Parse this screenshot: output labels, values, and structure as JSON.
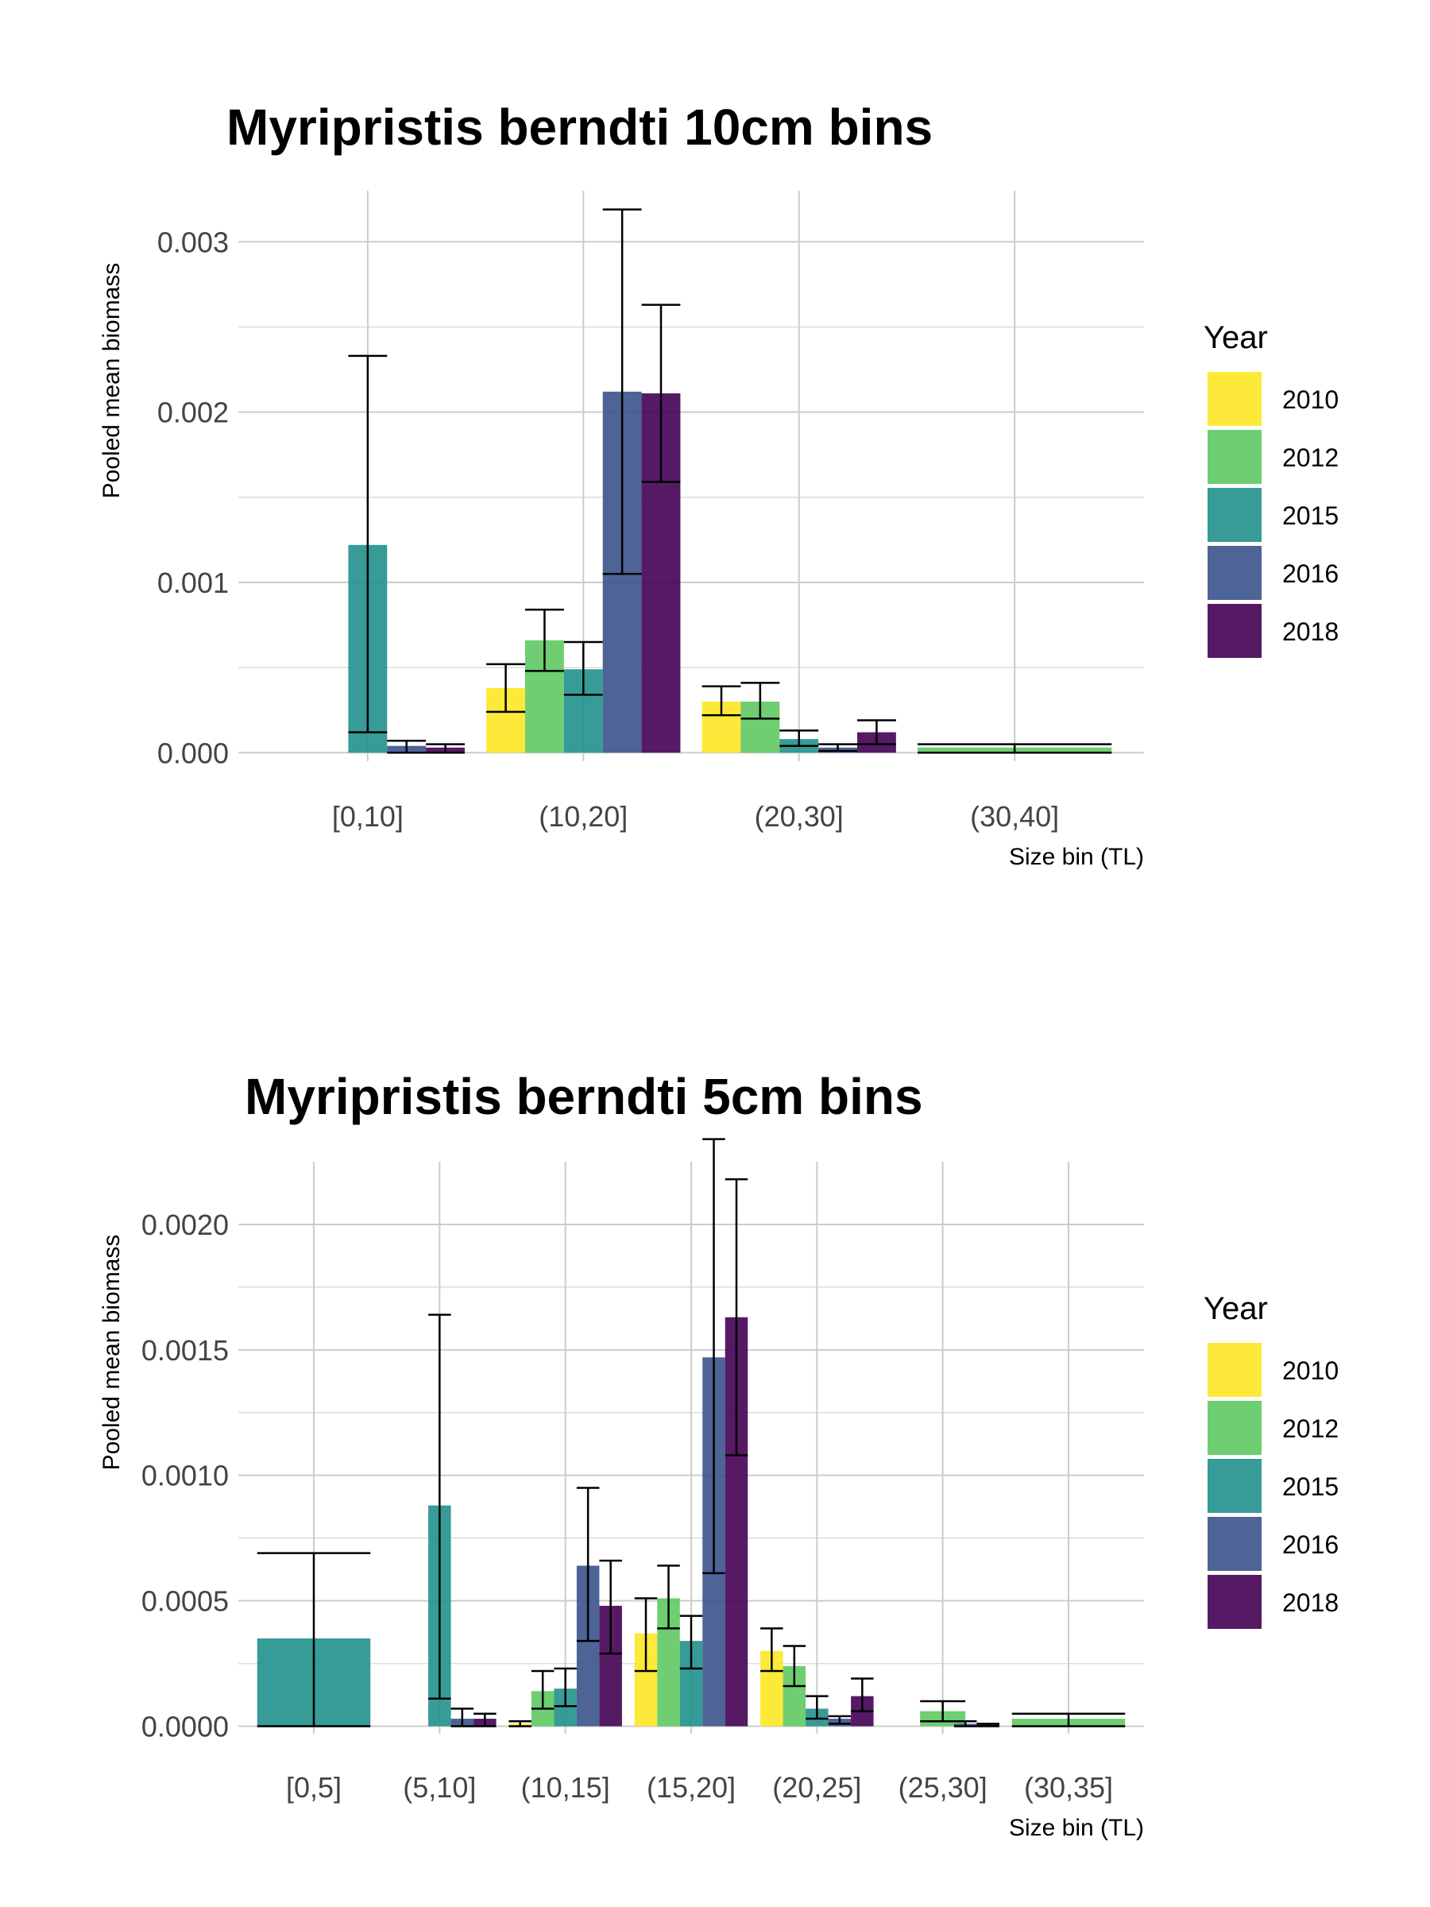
{
  "colors": {
    "2010": "#FDE725",
    "2012": "#5EC962",
    "2015": "#21908C",
    "2016": "#3B528B",
    "2018": "#440154"
  },
  "chart_data": [
    {
      "type": "bar",
      "title": "Myripristis berndti 10cm bins",
      "xlabel": "Size bin (TL)",
      "ylabel": "Pooled mean biomass",
      "categories": [
        "[0,10]",
        "(10,20]",
        "(20,30]",
        "(30,40]"
      ],
      "ylim": [
        -5e-05,
        0.0033
      ],
      "yticks": [
        0,
        0.001,
        0.002,
        0.003
      ],
      "ytick_labels": [
        "0.000",
        "0.001",
        "0.002",
        "0.003"
      ],
      "grid": true,
      "legend": {
        "title": "Year",
        "position": "right",
        "entries": [
          "2010",
          "2012",
          "2015",
          "2016",
          "2018"
        ]
      },
      "bars": [
        {
          "category": 0,
          "year": "2015",
          "value": 0.00122,
          "lo": 0.00012,
          "hi": 0.00233
        },
        {
          "category": 0,
          "year": "2016",
          "value": 4e-05,
          "lo": 0.0,
          "hi": 7e-05
        },
        {
          "category": 0,
          "year": "2018",
          "value": 3e-05,
          "lo": 0.0,
          "hi": 5e-05
        },
        {
          "category": 1,
          "year": "2010",
          "value": 0.00038,
          "lo": 0.00024,
          "hi": 0.00052
        },
        {
          "category": 1,
          "year": "2012",
          "value": 0.00066,
          "lo": 0.00048,
          "hi": 0.00084
        },
        {
          "category": 1,
          "year": "2015",
          "value": 0.00049,
          "lo": 0.00034,
          "hi": 0.00065
        },
        {
          "category": 1,
          "year": "2016",
          "value": 0.00212,
          "lo": 0.00105,
          "hi": 0.00319
        },
        {
          "category": 1,
          "year": "2018",
          "value": 0.00211,
          "lo": 0.00159,
          "hi": 0.00263
        },
        {
          "category": 2,
          "year": "2010",
          "value": 0.0003,
          "lo": 0.00022,
          "hi": 0.00039
        },
        {
          "category": 2,
          "year": "2012",
          "value": 0.0003,
          "lo": 0.0002,
          "hi": 0.00041
        },
        {
          "category": 2,
          "year": "2015",
          "value": 8e-05,
          "lo": 4e-05,
          "hi": 0.00013
        },
        {
          "category": 2,
          "year": "2016",
          "value": 3e-05,
          "lo": 1e-05,
          "hi": 5e-05
        },
        {
          "category": 2,
          "year": "2018",
          "value": 0.00012,
          "lo": 5e-05,
          "hi": 0.00019
        },
        {
          "category": 3,
          "year": "2012",
          "value": 3e-05,
          "lo": 0.0,
          "hi": 5e-05,
          "span": 5
        }
      ]
    },
    {
      "type": "bar",
      "title": "Myripristis berndti 5cm bins",
      "xlabel": "Size bin (TL)",
      "ylabel": "Pooled mean biomass",
      "categories": [
        "[0,5]",
        "(5,10]",
        "(10,15]",
        "(15,20]",
        "(20,25]",
        "(25,30]",
        "(30,35]"
      ],
      "ylim": [
        -3e-05,
        0.00225
      ],
      "yticks": [
        0,
        0.0005,
        0.001,
        0.0015,
        0.002
      ],
      "ytick_labels": [
        "0.0000",
        "0.0005",
        "0.0010",
        "0.0015",
        "0.0020"
      ],
      "grid": true,
      "legend": {
        "title": "Year",
        "position": "right",
        "entries": [
          "2010",
          "2012",
          "2015",
          "2016",
          "2018"
        ]
      },
      "bars": [
        {
          "category": 0,
          "year": "2015",
          "value": 0.00035,
          "lo": 0.0,
          "hi": 0.00069,
          "span": 5
        },
        {
          "category": 1,
          "year": "2015",
          "value": 0.00088,
          "lo": 0.00011,
          "hi": 0.00164
        },
        {
          "category": 1,
          "year": "2016",
          "value": 3e-05,
          "lo": 0.0,
          "hi": 7e-05
        },
        {
          "category": 1,
          "year": "2018",
          "value": 3e-05,
          "lo": 0.0,
          "hi": 5e-05
        },
        {
          "category": 2,
          "year": "2010",
          "value": 1e-05,
          "lo": 0.0,
          "hi": 2e-05
        },
        {
          "category": 2,
          "year": "2012",
          "value": 0.00014,
          "lo": 7e-05,
          "hi": 0.00022
        },
        {
          "category": 2,
          "year": "2015",
          "value": 0.00015,
          "lo": 8e-05,
          "hi": 0.00023
        },
        {
          "category": 2,
          "year": "2016",
          "value": 0.00064,
          "lo": 0.00034,
          "hi": 0.00095
        },
        {
          "category": 2,
          "year": "2018",
          "value": 0.00048,
          "lo": 0.00029,
          "hi": 0.00066
        },
        {
          "category": 3,
          "year": "2010",
          "value": 0.00037,
          "lo": 0.00022,
          "hi": 0.00051
        },
        {
          "category": 3,
          "year": "2012",
          "value": 0.00051,
          "lo": 0.00039,
          "hi": 0.00064
        },
        {
          "category": 3,
          "year": "2015",
          "value": 0.00034,
          "lo": 0.00023,
          "hi": 0.00044
        },
        {
          "category": 3,
          "year": "2016",
          "value": 0.00147,
          "lo": 0.00061,
          "hi": 0.00234
        },
        {
          "category": 3,
          "year": "2018",
          "value": 0.00163,
          "lo": 0.00108,
          "hi": 0.00218
        },
        {
          "category": 4,
          "year": "2010",
          "value": 0.0003,
          "lo": 0.00022,
          "hi": 0.00039
        },
        {
          "category": 4,
          "year": "2012",
          "value": 0.00024,
          "lo": 0.00016,
          "hi": 0.00032
        },
        {
          "category": 4,
          "year": "2015",
          "value": 7e-05,
          "lo": 3e-05,
          "hi": 0.00012
        },
        {
          "category": 4,
          "year": "2016",
          "value": 3e-05,
          "lo": 1e-05,
          "hi": 4e-05
        },
        {
          "category": 4,
          "year": "2018",
          "value": 0.00012,
          "lo": 6e-05,
          "hi": 0.00019
        },
        {
          "category": 5,
          "year": "2012",
          "value": 6e-05,
          "lo": 2e-05,
          "hi": 0.0001,
          "span": 2
        },
        {
          "category": 5,
          "year": "2016",
          "value": 1e-05,
          "lo": 0.0,
          "hi": 2e-05
        },
        {
          "category": 5,
          "year": "2018",
          "value": 1e-05,
          "lo": 0.0,
          "hi": 1e-05
        },
        {
          "category": 6,
          "year": "2012",
          "value": 3e-05,
          "lo": 0.0,
          "hi": 5e-05,
          "span": 5
        }
      ]
    }
  ]
}
